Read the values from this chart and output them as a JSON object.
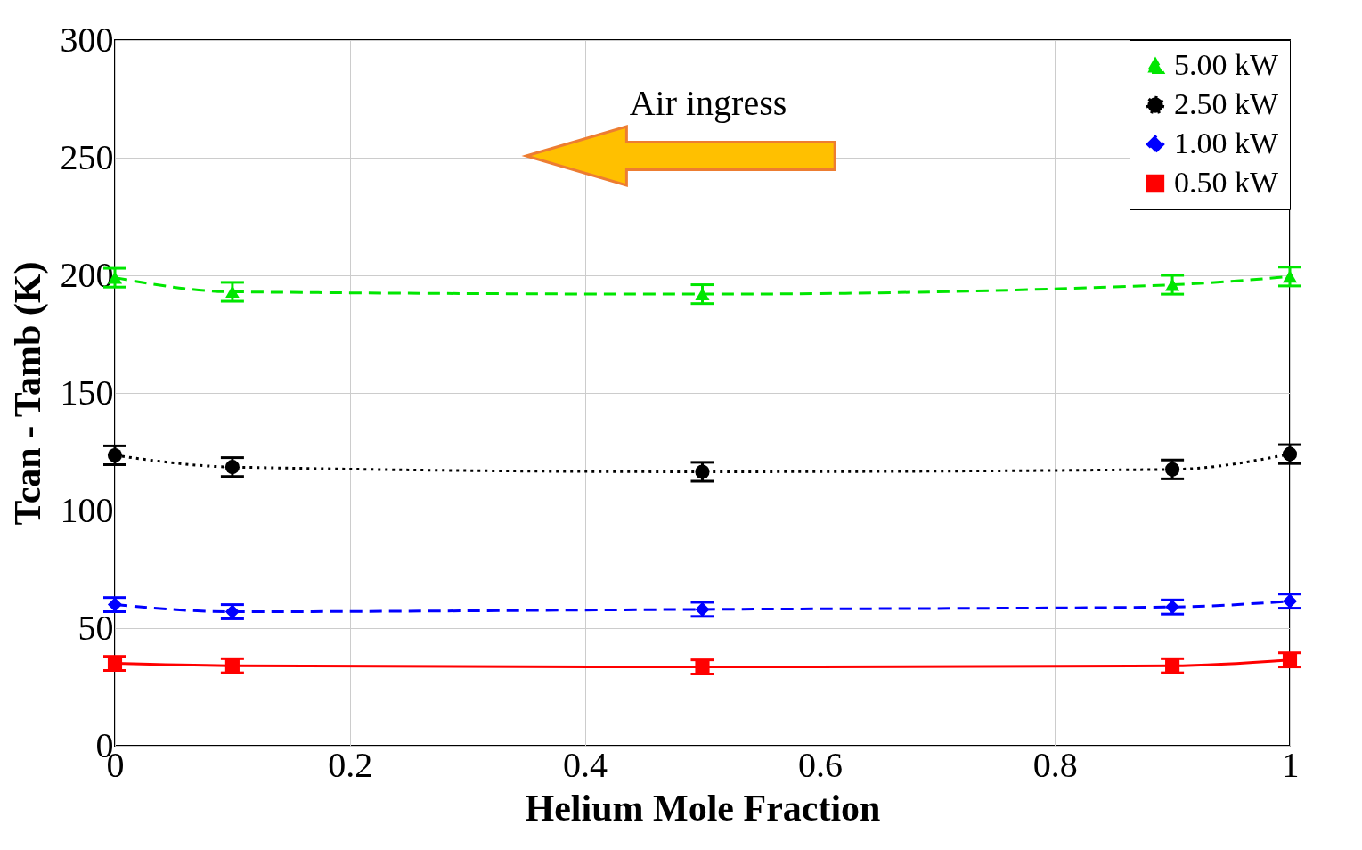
{
  "chart_data": {
    "type": "line",
    "xlabel": "Helium Mole Fraction",
    "ylabel": "Tcan - Tamb (K)",
    "x": [
      0,
      0.1,
      0.5,
      0.9,
      1
    ],
    "series": [
      {
        "name": "5.00 kW",
        "color": "#00e600",
        "values": [
          199,
          193,
          192,
          196,
          199.5
        ],
        "errors": [
          4,
          4,
          4,
          4,
          4
        ],
        "marker": "triangle",
        "line_style": "dashed"
      },
      {
        "name": "2.50 kW",
        "color": "#000000",
        "values": [
          123.5,
          118.5,
          116.5,
          117.5,
          124
        ],
        "errors": [
          4,
          4,
          4,
          4,
          4
        ],
        "marker": "circle",
        "line_style": "dotted"
      },
      {
        "name": "1.00 kW",
        "color": "#0000ff",
        "values": [
          60,
          57,
          58,
          59,
          61.5
        ],
        "errors": [
          3,
          3,
          3,
          3,
          3
        ],
        "marker": "diamond",
        "line_style": "dashed"
      },
      {
        "name": "0.50 kW",
        "color": "#ff0000",
        "values": [
          35,
          34,
          33.5,
          34,
          36.5
        ],
        "errors": [
          3,
          3,
          3,
          3,
          3
        ],
        "marker": "square",
        "line_style": "solid"
      }
    ],
    "xlim": [
      0,
      1
    ],
    "xticks": [
      0,
      0.2,
      0.4,
      0.6,
      0.8,
      1
    ],
    "ylim": [
      0,
      300
    ],
    "yticks": [
      0,
      50,
      100,
      150,
      200,
      250,
      300
    ],
    "grid": true,
    "legend": "top right",
    "annotations": [
      "Air ingress"
    ]
  }
}
